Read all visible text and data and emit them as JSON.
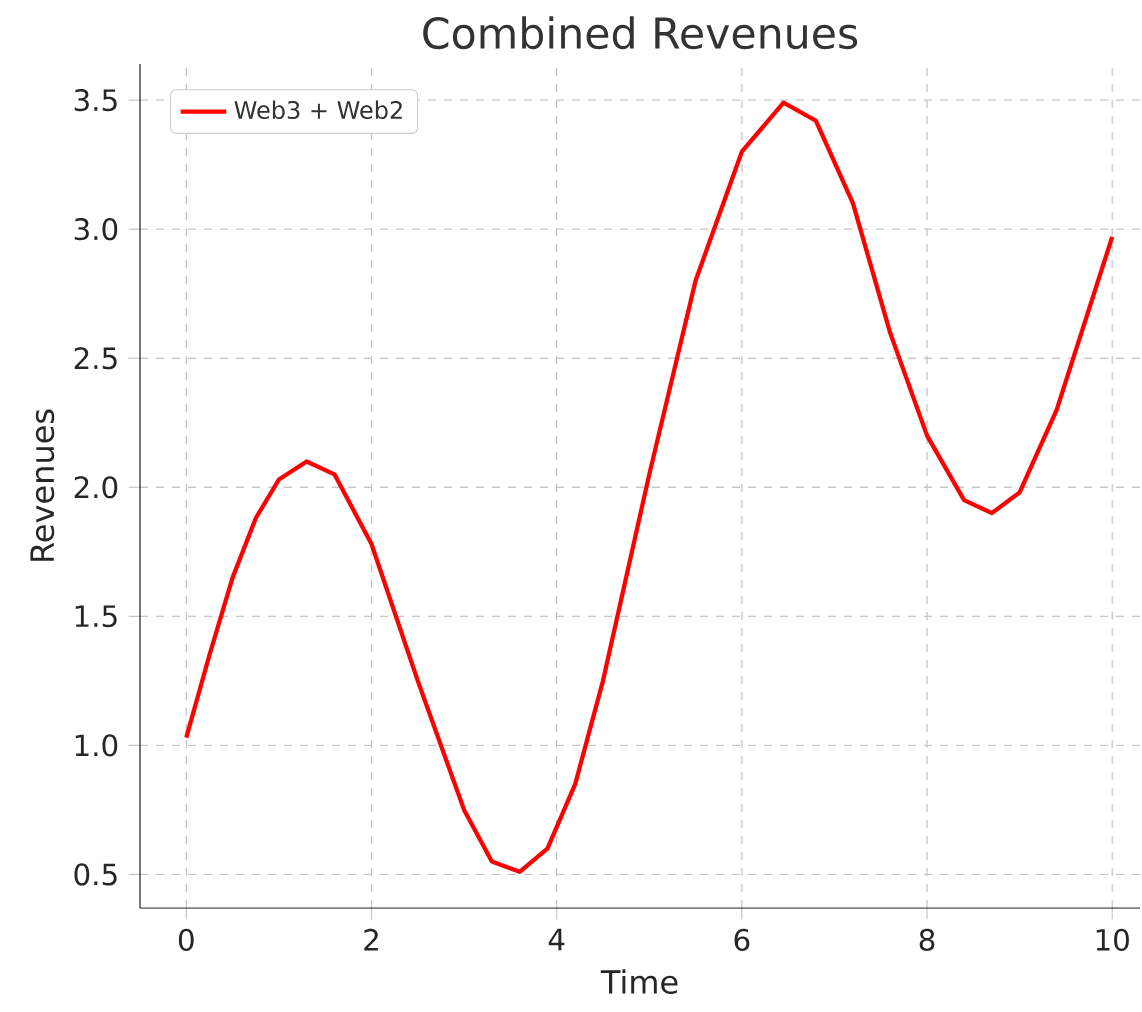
{
  "chart_data": {
    "type": "line",
    "title": "Combined Revenues",
    "xlabel": "Time",
    "ylabel": "Revenues",
    "xlim": [
      -0.5,
      10.3
    ],
    "ylim": [
      0.37,
      3.64
    ],
    "xticks": [
      0,
      2,
      4,
      6,
      8,
      10
    ],
    "yticks": [
      {
        "value": 0.5,
        "label": "0.5"
      },
      {
        "value": 1.0,
        "label": "1.0"
      },
      {
        "value": 1.5,
        "label": "1.5"
      },
      {
        "value": 2.0,
        "label": "2.0"
      },
      {
        "value": 2.5,
        "label": "2.5"
      },
      {
        "value": 3.0,
        "label": "3.0"
      },
      {
        "value": 3.5,
        "label": "3.5"
      }
    ],
    "grid": true,
    "legend": "top left",
    "marker": "none",
    "line_style": "solid",
    "series": [
      {
        "name": "Web3 + Web2",
        "color": "#ff0000",
        "x": [
          0,
          0.25,
          0.5,
          0.75,
          1.0,
          1.3,
          1.6,
          2.0,
          2.5,
          3.0,
          3.3,
          3.6,
          3.9,
          4.2,
          4.5,
          5.0,
          5.5,
          6.0,
          6.45,
          6.8,
          7.2,
          7.6,
          8.0,
          8.4,
          8.7,
          9.0,
          9.4,
          10.0
        ],
        "values": [
          1.03,
          1.35,
          1.65,
          1.88,
          2.03,
          2.1,
          2.05,
          1.78,
          1.25,
          0.75,
          0.55,
          0.51,
          0.6,
          0.85,
          1.25,
          2.05,
          2.8,
          3.3,
          3.49,
          3.42,
          3.1,
          2.6,
          2.2,
          1.95,
          1.9,
          1.98,
          2.3,
          2.97
        ]
      }
    ]
  }
}
